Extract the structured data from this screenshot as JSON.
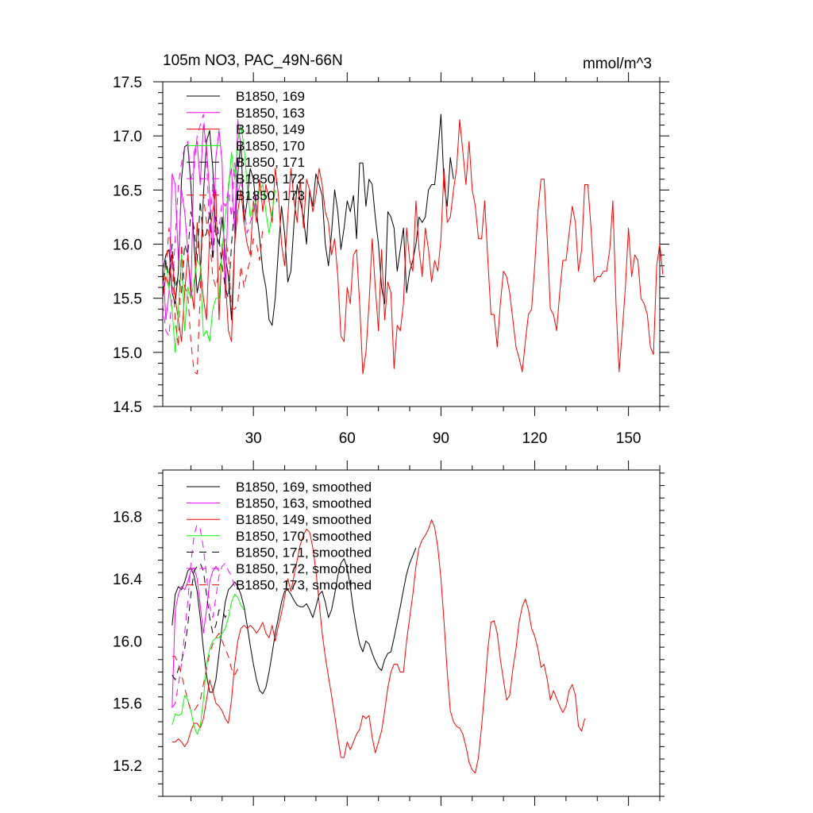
{
  "chart_data": [
    {
      "type": "line",
      "title": "105m NO3, PAC_49N-66N",
      "units_label": "mmol/m^3",
      "xlim": [
        1,
        160
      ],
      "ylim": [
        14.5,
        17.5
      ],
      "xticks": [
        30,
        60,
        90,
        120,
        150
      ],
      "xtick_labels": [
        "30",
        "60",
        "90",
        "120",
        "150"
      ],
      "yticks": [
        14.5,
        15.0,
        15.5,
        16.0,
        16.5,
        17.0,
        17.5
      ],
      "ytick_labels": [
        "14.5",
        "15.0",
        "15.5",
        "16.0",
        "16.5",
        "17.0",
        "17.5"
      ],
      "series": [
        {
          "name": "B1850, 169",
          "color": "#000000",
          "dash": "",
          "x_start": 1,
          "values": [
            15.75,
            15.9,
            15.95,
            15.55,
            15.45,
            15.75,
            16.6,
            16.9,
            16.92,
            16.55,
            16.0,
            15.55,
            15.7,
            16.45,
            16.95,
            17.05,
            16.7,
            16.1,
            16.0,
            16.25,
            15.9,
            15.7,
            15.3,
            16.0,
            16.65,
            16.95,
            16.2,
            16.4,
            16.7,
            16.6,
            16.3,
            16.05,
            15.75,
            15.6,
            15.3,
            15.25,
            15.5,
            15.95,
            16.35,
            16.1,
            15.65,
            15.75,
            16.2,
            16.55,
            16.4,
            16.25,
            16.0,
            16.5,
            16.35,
            16.65,
            16.55,
            16.45,
            16.0,
            15.8,
            16.1,
            16.5,
            16.3,
            15.95,
            16.15,
            16.4,
            16.3,
            16.45,
            16.05,
            16.75,
            16.75,
            16.35,
            16.6,
            16.55,
            16.25,
            16.0,
            15.6,
            15.45,
            16.3,
            16.25,
            16.15,
            15.75,
            15.95,
            16.15,
            15.55,
            15.75,
            15.85,
            16.0,
            16.25,
            16.2,
            16.25,
            16.5,
            16.55,
            16.55,
            16.85,
            17.2,
            16.55,
            16.35,
            16.8,
            16.6
          ]
        },
        {
          "name": "B1850, 163",
          "color": "#ff00ff",
          "dash": "",
          "x_start": 1,
          "values": [
            15.85,
            15.3,
            15.55,
            16.65,
            16.55,
            15.85,
            16.5,
            16.3,
            15.95,
            15.5,
            16.85,
            16.95,
            16.55,
            17.1,
            16.9,
            16.45,
            15.9,
            16.8,
            17.05,
            16.75,
            15.5,
            16.55,
            16.7,
            16.1,
            17.15,
            16.9
          ]
        },
        {
          "name": "B1850, 149",
          "color": "#ff0000",
          "dash": "",
          "x_start": 1,
          "values": [
            15.5,
            15.7,
            15.6,
            15.9,
            15.5,
            15.3,
            15.1,
            15.55,
            15.9,
            15.6,
            15.4,
            16.2,
            15.8,
            15.5,
            15.3,
            16.1,
            16.3,
            16.5,
            15.3,
            16.0,
            15.7,
            15.2,
            15.1,
            16.0,
            16.3,
            16.5,
            16.2,
            16.0,
            15.9,
            16.4,
            16.2,
            16.6,
            16.3,
            16.55,
            16.4,
            16.2,
            16.7,
            16.45,
            16.0,
            15.8,
            16.25,
            16.7,
            16.4,
            16.2,
            16.6,
            16.15,
            16.6,
            16.5,
            16.3,
            16.45,
            16.7,
            16.55,
            16.3,
            16.2,
            15.9,
            16.05,
            15.7,
            15.15,
            15.1,
            15.6,
            15.45,
            15.9,
            15.95,
            15.45,
            14.8,
            15.0,
            15.45,
            16.05,
            15.6,
            15.2,
            15.95,
            15.3,
            15.65,
            15.55,
            14.85,
            15.25,
            15.2,
            15.45,
            16.15,
            15.85,
            15.75,
            16.4,
            15.95,
            15.7,
            16.15,
            15.95,
            15.65,
            15.85,
            15.75,
            16.05,
            16.7,
            16.2,
            16.25,
            16.5,
            16.7,
            17.15,
            16.85,
            16.55,
            16.95,
            16.5,
            16.35,
            16.05,
            16.05,
            16.4,
            15.85,
            15.35,
            15.35,
            15.05,
            15.45,
            15.75,
            15.7,
            15.55,
            15.3,
            15.05,
            14.95,
            14.82,
            15.1,
            15.35,
            15.4,
            15.8,
            16.3,
            16.6,
            16.6,
            16.05,
            15.4,
            15.35,
            15.2,
            15.55,
            15.85,
            15.85,
            16.1,
            16.35,
            16.2,
            15.75,
            15.95,
            16.55,
            16.55,
            16.15,
            15.65,
            15.7,
            15.7,
            15.75,
            15.75,
            15.95,
            16.4,
            15.45,
            14.82,
            15.2,
            15.6,
            16.15,
            15.7,
            15.9,
            15.85,
            15.5,
            15.45,
            15.35,
            15.05,
            14.98,
            15.8,
            16.0,
            15.72
          ]
        },
        {
          "name": "B1850, 170",
          "color": "#00ff00",
          "dash": "",
          "x_start": 1,
          "values": [
            15.6,
            15.85,
            15.6,
            15.4,
            15.0,
            15.4,
            15.9,
            15.2,
            15.6,
            15.5,
            15.65,
            15.85,
            15.8,
            15.15,
            15.2,
            15.1,
            15.4,
            15.5,
            15.5,
            15.95,
            16.25,
            16.5,
            16.85,
            16.6,
            16.95,
            17.1,
            16.9,
            16.55,
            16.25,
            16.35,
            16.4,
            16.5,
            16.55,
            16.3,
            16.1,
            16.3,
            16.5
          ]
        },
        {
          "name": "B1850, 171",
          "color": "#000000",
          "dash": "9,7",
          "x_start": 1,
          "values": [
            15.55,
            15.85,
            15.7,
            16.0,
            15.6,
            15.7,
            15.55,
            16.0,
            15.9,
            16.3,
            16.15,
            15.85,
            16.4,
            16.05,
            16.1,
            16.3,
            15.85,
            16.25,
            16.05,
            15.8,
            15.6,
            15.5,
            16.0,
            16.35
          ]
        },
        {
          "name": "B1850, 172",
          "color": "#ff00ff",
          "dash": "9,7",
          "x_start": 1,
          "values": [
            15.45,
            15.2,
            15.15,
            15.55,
            16.05,
            16.55,
            16.75,
            16.9,
            16.95,
            16.6,
            16.7,
            17.0,
            17.1,
            17.2,
            16.8,
            16.1,
            16.55,
            16.05,
            16.15,
            16.4,
            16.35,
            16.5,
            16.25,
            16.75,
            16.45,
            16.6,
            16.35,
            16.1,
            16.2,
            16.3,
            16.45
          ]
        },
        {
          "name": "B1850, 173",
          "color": "#ff0000",
          "dash": "9,7",
          "x_start": 1,
          "values": [
            15.65,
            15.75,
            16.15,
            15.85,
            15.3,
            15.05,
            16.0,
            15.6,
            15.55,
            15.1,
            14.82,
            14.8,
            15.55,
            16.45,
            16.2,
            16.05,
            15.7,
            15.6,
            15.75,
            15.9,
            16.05,
            15.9,
            15.4,
            15.4,
            15.45,
            15.8,
            15.6,
            15.75,
            15.85,
            16.05,
            16.0,
            15.85,
            16.15
          ]
        }
      ]
    },
    {
      "type": "line",
      "title": "",
      "xlim": [
        1,
        160
      ],
      "ylim": [
        15.0,
        17.1
      ],
      "xticks": [
        30,
        60,
        90,
        120,
        150
      ],
      "xtick_labels": [
        "",
        "",
        "",
        "",
        ""
      ],
      "yticks": [
        15.2,
        15.6,
        16.0,
        16.4,
        16.8
      ],
      "ytick_labels": [
        "15.2",
        "15.6",
        "16.0",
        "16.4",
        "16.8"
      ],
      "series": [
        {
          "name": "B1850, 169, smoothed",
          "color": "#000000",
          "dash": "",
          "x_start": 4,
          "values": [
            16.1,
            16.3,
            16.35,
            16.33,
            16.38,
            16.45,
            16.47,
            16.42,
            16.32,
            16.15,
            15.95,
            15.78,
            15.67,
            15.67,
            15.75,
            15.92,
            16.1,
            16.25,
            16.33,
            16.35,
            16.38,
            16.35,
            16.3,
            16.22,
            16.1,
            15.97,
            15.85,
            15.75,
            15.68,
            15.66,
            15.7,
            15.8,
            15.92,
            16.05,
            16.15,
            16.25,
            16.32,
            16.33,
            16.3,
            16.26,
            16.23,
            16.22,
            16.22,
            16.24,
            16.2,
            16.15,
            16.22,
            16.3,
            16.32,
            16.25,
            16.15,
            16.2,
            16.3,
            16.42,
            16.5,
            16.53,
            16.47,
            16.35,
            16.2,
            16.08,
            15.98,
            15.93,
            16.0,
            15.98,
            15.92,
            15.87,
            15.83,
            15.81,
            15.88,
            15.92,
            15.93,
            16.02,
            16.12,
            16.22,
            16.33,
            16.43,
            16.5,
            16.55,
            16.6
          ]
        },
        {
          "name": "B1850, 163, smoothed",
          "color": "#ff00ff",
          "dash": "",
          "x_start": 4,
          "values": [
            15.57,
            16.2,
            16.3,
            16.35,
            16.33,
            16.38,
            16.45,
            16.47,
            16.4,
            16.23,
            16.05,
            16.2,
            16.38,
            16.45,
            16.48,
            16.45
          ]
        },
        {
          "name": "B1850, 149, smoothed",
          "color": "#ff0000",
          "dash": "",
          "x_start": 4,
          "values": [
            15.35,
            15.35,
            15.37,
            15.35,
            15.32,
            15.35,
            15.42,
            15.47,
            15.47,
            15.44,
            15.5,
            15.62,
            15.75,
            15.68,
            15.6,
            15.58,
            15.55,
            15.5,
            15.47,
            15.62,
            15.85,
            16.0,
            16.08,
            16.1,
            16.08,
            16.1,
            16.08,
            16.05,
            16.08,
            16.12,
            16.05,
            16.02,
            16.1,
            16.0,
            16.1,
            16.18,
            16.28,
            16.4,
            16.32,
            16.42,
            16.52,
            16.62,
            16.68,
            16.72,
            16.7,
            16.6,
            16.45,
            16.25,
            16.05,
            15.9,
            15.77,
            15.65,
            15.52,
            15.38,
            15.25,
            15.25,
            15.35,
            15.3,
            15.35,
            15.4,
            15.43,
            15.52,
            15.5,
            15.52,
            15.38,
            15.28,
            15.35,
            15.42,
            15.55,
            15.7,
            15.8,
            15.85,
            15.85,
            15.8,
            15.8,
            16.0,
            16.15,
            16.3,
            16.48,
            16.6,
            16.65,
            16.68,
            16.72,
            16.78,
            16.73,
            16.6,
            16.4,
            16.12,
            15.8,
            15.55,
            15.48,
            15.45,
            15.44,
            15.4,
            15.32,
            15.22,
            15.17,
            15.15,
            15.25,
            15.45,
            15.68,
            15.95,
            16.12,
            16.13,
            16.05,
            15.88,
            15.75,
            15.62,
            15.65,
            15.82,
            15.95,
            16.12,
            16.22,
            16.27,
            16.2,
            16.08,
            16.03,
            15.95,
            15.83,
            15.85,
            15.75,
            15.62,
            15.68,
            15.63,
            15.58,
            15.54,
            15.58,
            15.68,
            15.72,
            15.65,
            15.45,
            15.42,
            15.5
          ]
        },
        {
          "name": "B1850, 170, smoothed",
          "color": "#00ff00",
          "dash": "",
          "x_start": 4,
          "values": [
            15.46,
            15.53,
            15.52,
            15.53,
            15.65,
            15.62,
            15.55,
            15.45,
            15.4,
            15.45,
            15.62,
            15.85,
            15.95,
            16.0,
            16.02,
            16.02,
            16.05,
            16.08,
            16.15,
            16.25,
            16.3,
            16.28,
            16.23,
            16.2
          ]
        },
        {
          "name": "B1850, 171, smoothed",
          "color": "#000000",
          "dash": "9,7",
          "x_start": 4,
          "values": [
            15.78,
            15.75,
            15.82,
            15.87,
            15.95,
            16.1,
            16.3,
            16.45,
            16.48,
            16.5,
            16.45,
            16.3,
            16.15,
            16.05,
            16.1,
            16.2,
            16.2,
            16.15,
            16.2
          ]
        },
        {
          "name": "B1850, 172, smoothed",
          "color": "#ff00ff",
          "dash": "9,7",
          "x_start": 4,
          "values": [
            15.57,
            15.6,
            15.72,
            15.85,
            16.05,
            16.25,
            16.5,
            16.68,
            16.75,
            16.72,
            16.6,
            16.42,
            16.22,
            16.15,
            16.28,
            16.42,
            16.48,
            16.5,
            16.45,
            16.42,
            16.35
          ]
        },
        {
          "name": "B1850, 173, smoothed",
          "color": "#ff0000",
          "dash": "9,7",
          "x_start": 4,
          "values": [
            15.9,
            15.9,
            15.85,
            15.78,
            15.7,
            15.62,
            15.55,
            15.55,
            15.58,
            15.62,
            15.72,
            15.82,
            15.92,
            15.98,
            16.02,
            16.05,
            16.0,
            15.95,
            15.9,
            15.82,
            15.78,
            15.82
          ]
        }
      ]
    }
  ]
}
